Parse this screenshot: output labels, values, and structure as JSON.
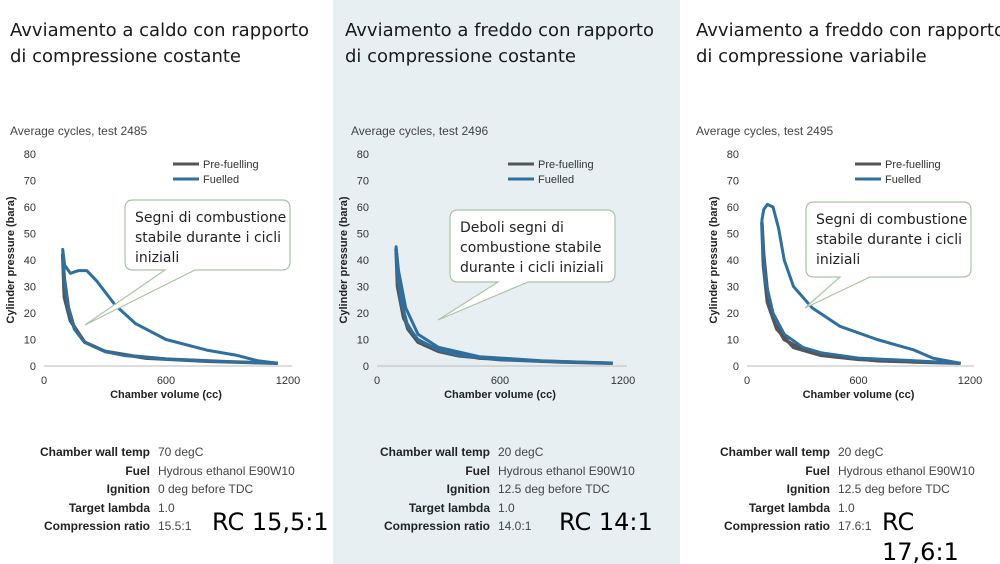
{
  "panels": [
    {
      "heading": "Avviamento a caldo con rapporto di compressione costante",
      "subtitle": "Average cycles, test 2485",
      "callout": [
        "Segni di combustione",
        "stabile durante i cicli",
        "iniziali"
      ],
      "specs": [
        {
          "label": "Chamber wall temp",
          "value": "70 degC"
        },
        {
          "label": "Fuel",
          "value": "Hydrous ethanol E90W10"
        },
        {
          "label": "Ignition",
          "value": "0 deg before TDC"
        },
        {
          "label": "Target lambda",
          "value": "1.0"
        },
        {
          "label": "Compression ratio",
          "value": "15.5:1"
        }
      ],
      "rc_label": "RC 15,5:1"
    },
    {
      "heading": "Avviamento a freddo con rapporto di compressione costante",
      "subtitle": "Average cycles, test 2496",
      "callout": [
        "Deboli segni di",
        "combustione stabile",
        "durante i cicli iniziali"
      ],
      "specs": [
        {
          "label": "Chamber wall temp",
          "value": "20 degC"
        },
        {
          "label": "Fuel",
          "value": "Hydrous ethanol E90W10"
        },
        {
          "label": "Ignition",
          "value": "12.5 deg before TDC"
        },
        {
          "label": "Target lambda",
          "value": "1.0"
        },
        {
          "label": "Compression ratio",
          "value": "14.0:1"
        }
      ],
      "rc_label": "RC 14:1"
    },
    {
      "heading": "Avviamento a freddo con rapporto di compressione variabile",
      "subtitle": "Average cycles, test 2495",
      "callout": [
        "Segni di combustione",
        "stabile durante i cicli",
        "iniziali"
      ],
      "specs": [
        {
          "label": "Chamber wall temp",
          "value": "20 degC"
        },
        {
          "label": "Fuel",
          "value": "Hydrous ethanol E90W10"
        },
        {
          "label": "Ignition",
          "value": "12.5 deg before TDC"
        },
        {
          "label": "Target lambda",
          "value": "1.0"
        },
        {
          "label": "Compression ratio",
          "value": "17.6:1"
        }
      ],
      "rc_label": "RC 17,6:1"
    }
  ],
  "colors": {
    "pre_fuelling": "#555555",
    "fuelled": "#2f6f9f",
    "callout_border": "#a8c4a8"
  },
  "chart_data": [
    {
      "type": "line",
      "xlabel": "Chamber volume (cc)",
      "ylabel": "Cylinder pressure (bara)",
      "xlim": [
        0,
        1200
      ],
      "ylim": [
        0,
        80
      ],
      "xticks": [
        0,
        600,
        1200
      ],
      "yticks": [
        0,
        10,
        20,
        30,
        40,
        50,
        60,
        70,
        80
      ],
      "legend_position": "top-right",
      "series": [
        {
          "name": "Pre-fuelling",
          "points": [
            [
              1150,
              1
            ],
            [
              900,
              1.6
            ],
            [
              600,
              2.6
            ],
            [
              400,
              4
            ],
            [
              300,
              5.5
            ],
            [
              200,
              9
            ],
            [
              150,
              14
            ],
            [
              120,
              22
            ],
            [
              100,
              33
            ],
            [
              92,
              42
            ],
            [
              100,
              26
            ],
            [
              130,
              17
            ],
            [
              200,
              9
            ],
            [
              300,
              5.5
            ],
            [
              500,
              3
            ],
            [
              800,
              1.8
            ],
            [
              1150,
              1
            ]
          ]
        },
        {
          "name": "Fuelled",
          "points": [
            [
              1150,
              1
            ],
            [
              900,
              1.6
            ],
            [
              600,
              2.6
            ],
            [
              400,
              4
            ],
            [
              300,
              5.5
            ],
            [
              200,
              9
            ],
            [
              150,
              14
            ],
            [
              120,
              22
            ],
            [
              100,
              33
            ],
            [
              92,
              44
            ],
            [
              102,
              38
            ],
            [
              130,
              35
            ],
            [
              170,
              36
            ],
            [
              210,
              36
            ],
            [
              260,
              32
            ],
            [
              350,
              23
            ],
            [
              450,
              16
            ],
            [
              600,
              10
            ],
            [
              800,
              6
            ],
            [
              950,
              4
            ],
            [
              1050,
              2
            ],
            [
              1150,
              1
            ]
          ]
        }
      ]
    },
    {
      "type": "line",
      "xlabel": "Chamber volume (cc)",
      "ylabel": "Cylinder pressure (bara)",
      "xlim": [
        0,
        1200
      ],
      "ylim": [
        0,
        80
      ],
      "xticks": [
        0,
        600,
        1200
      ],
      "yticks": [
        0,
        10,
        20,
        30,
        40,
        50,
        60,
        70,
        80
      ],
      "legend_position": "top-right",
      "series": [
        {
          "name": "Pre-fuelling",
          "points": [
            [
              1150,
              1
            ],
            [
              900,
              1.5
            ],
            [
              600,
              2.4
            ],
            [
              400,
              3.8
            ],
            [
              300,
              5.5
            ],
            [
              200,
              9
            ],
            [
              150,
              14
            ],
            [
              120,
              22
            ],
            [
              100,
              33
            ],
            [
              93,
              44
            ],
            [
              100,
              30
            ],
            [
              130,
              18
            ],
            [
              200,
              9
            ],
            [
              300,
              5.5
            ],
            [
              500,
              3
            ],
            [
              800,
              1.8
            ],
            [
              1150,
              1
            ]
          ]
        },
        {
          "name": "Fuelled",
          "points": [
            [
              1150,
              1
            ],
            [
              900,
              1.6
            ],
            [
              600,
              2.5
            ],
            [
              400,
              4
            ],
            [
              300,
              6
            ],
            [
              200,
              10
            ],
            [
              150,
              15
            ],
            [
              120,
              24
            ],
            [
              100,
              35
            ],
            [
              93,
              45
            ],
            [
              105,
              36
            ],
            [
              140,
              22
            ],
            [
              200,
              12
            ],
            [
              300,
              7
            ],
            [
              500,
              3.5
            ],
            [
              800,
              2
            ],
            [
              1150,
              1
            ]
          ]
        }
      ]
    },
    {
      "type": "line",
      "xlabel": "Chamber volume (cc)",
      "ylabel": "Cylinder pressure (bara)",
      "xlim": [
        0,
        1200
      ],
      "ylim": [
        0,
        80
      ],
      "xticks": [
        0,
        600,
        1200
      ],
      "yticks": [
        0,
        10,
        20,
        30,
        40,
        50,
        60,
        70,
        80
      ],
      "legend_position": "top-right",
      "series": [
        {
          "name": "Pre-fuelling",
          "points": [
            [
              1150,
              1
            ],
            [
              900,
              1.5
            ],
            [
              600,
              2.5
            ],
            [
              400,
              4
            ],
            [
              300,
              6
            ],
            [
              200,
              10
            ],
            [
              150,
              16
            ],
            [
              110,
              28
            ],
            [
              90,
              42
            ],
            [
              80,
              54
            ],
            [
              88,
              38
            ],
            [
              110,
              24
            ],
            [
              160,
              14
            ],
            [
              250,
              7
            ],
            [
              400,
              4
            ],
            [
              700,
              2
            ],
            [
              1150,
              1
            ]
          ]
        },
        {
          "name": "Fuelled",
          "points": [
            [
              1150,
              1
            ],
            [
              900,
              2
            ],
            [
              600,
              3
            ],
            [
              400,
              5
            ],
            [
              300,
              7
            ],
            [
              200,
              12
            ],
            [
              140,
              20
            ],
            [
              100,
              32
            ],
            [
              85,
              45
            ],
            [
              80,
              55
            ],
            [
              90,
              59
            ],
            [
              110,
              61
            ],
            [
              140,
              60
            ],
            [
              170,
              52
            ],
            [
              200,
              40
            ],
            [
              250,
              30
            ],
            [
              350,
              22
            ],
            [
              500,
              15
            ],
            [
              700,
              10
            ],
            [
              900,
              6
            ],
            [
              1000,
              3
            ],
            [
              1150,
              1
            ]
          ]
        }
      ]
    }
  ]
}
